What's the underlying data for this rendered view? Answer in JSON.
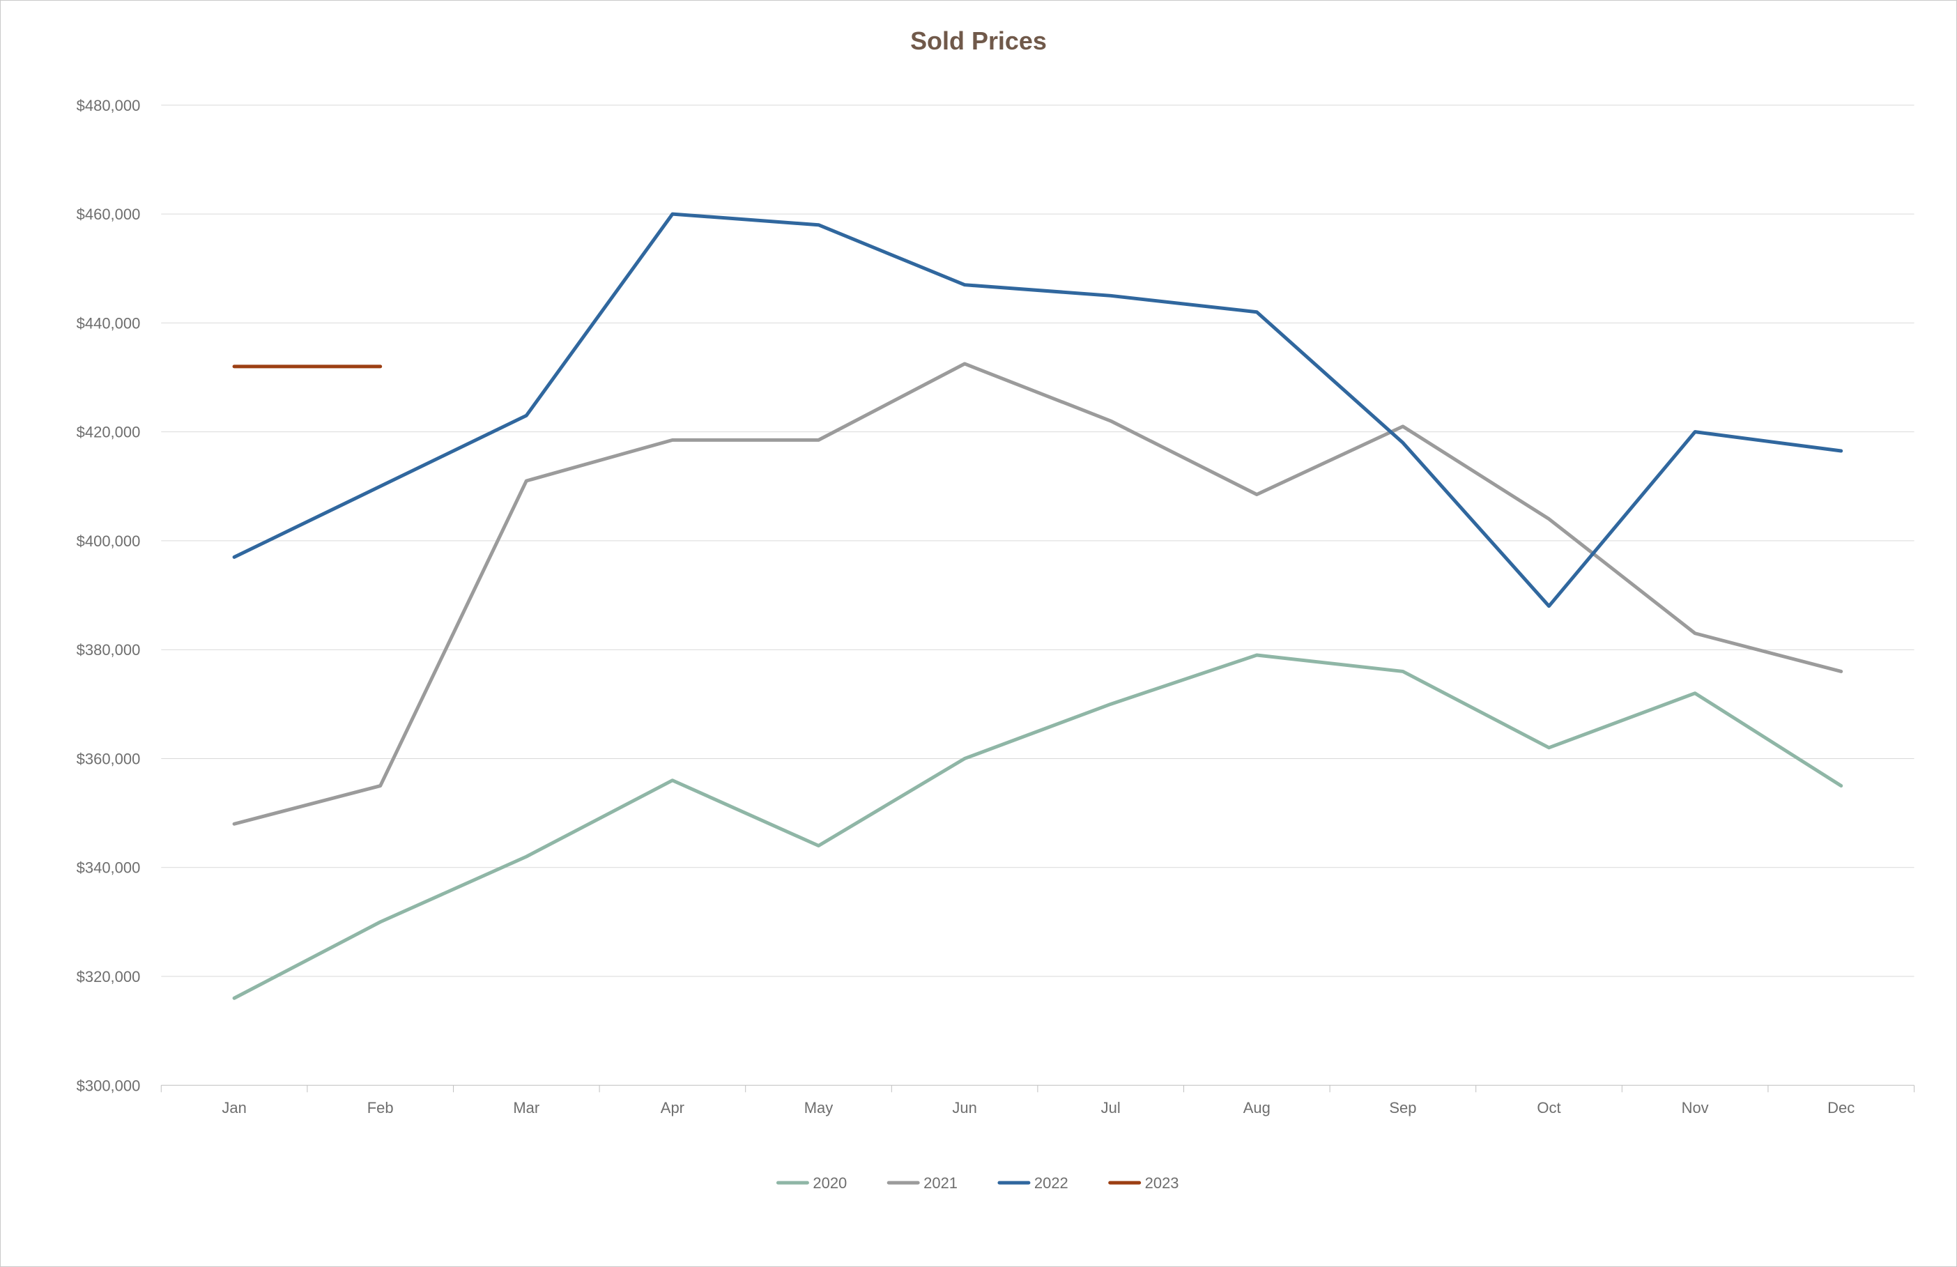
{
  "chart": {
    "type": "line",
    "title": "Sold Prices",
    "title_fontsize": 36,
    "title_color": "#70594a",
    "background_color": "#ffffff",
    "border_color": "#c9c9c9",
    "axis_label_color": "#6e6e6e",
    "axis_label_fontsize": 22,
    "x_categories": [
      "Jan",
      "Feb",
      "Mar",
      "Apr",
      "May",
      "Jun",
      "Jul",
      "Aug",
      "Sep",
      "Oct",
      "Nov",
      "Dec"
    ],
    "y_min": 300000,
    "y_max": 480000,
    "y_tick_step": 20000,
    "y_tick_format_prefix": "$",
    "y_tick_format_thousands": ",",
    "grid_color": "#d9d9d9",
    "baseline_color": "#bfbfbf",
    "legend_fontsize": 22,
    "legend_swatch_length": 42,
    "legend_line_width": 5,
    "line_width": 5,
    "series": [
      {
        "name": "2020",
        "color": "#8fb6a6",
        "values": [
          316000,
          330000,
          342000,
          356000,
          344000,
          360000,
          370000,
          379000,
          376000,
          362000,
          372000,
          355000
        ]
      },
      {
        "name": "2021",
        "color": "#9b9b9b",
        "values": [
          348000,
          355000,
          411000,
          418500,
          418500,
          432500,
          422000,
          408500,
          421000,
          404000,
          383000,
          376000
        ]
      },
      {
        "name": "2022",
        "color": "#30679e",
        "values": [
          397000,
          410000,
          423000,
          460000,
          458000,
          447000,
          445000,
          442000,
          418000,
          388000,
          420000,
          416500
        ]
      },
      {
        "name": "2023",
        "color": "#9c3f13",
        "values": [
          432000,
          432000,
          null,
          null,
          null,
          null,
          null,
          null,
          null,
          null,
          null,
          null
        ]
      }
    ]
  }
}
